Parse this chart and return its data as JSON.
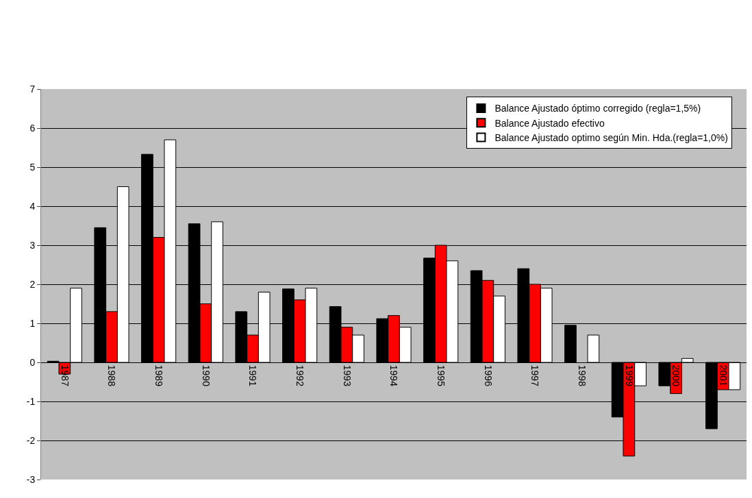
{
  "chart_data": {
    "type": "bar",
    "categories": [
      "1987",
      "1988",
      "1989",
      "1990",
      "1991",
      "1992",
      "1993",
      "1994",
      "1995",
      "1996",
      "1997",
      "1998",
      "1999",
      "2000",
      "2001"
    ],
    "series": [
      {
        "name": "Balance Ajustado óptimo corregido (regla=1,5%)",
        "color": "#000000",
        "values": [
          0.03,
          3.45,
          5.33,
          3.55,
          1.3,
          1.88,
          1.43,
          1.12,
          2.67,
          2.35,
          2.4,
          0.95,
          -1.4,
          -0.6,
          -1.7
        ]
      },
      {
        "name": "Balance Ajustado efectivo",
        "color": "#ff0000",
        "values": [
          -0.3,
          1.3,
          3.2,
          1.5,
          0.7,
          1.6,
          0.9,
          1.2,
          3.0,
          2.1,
          2.0,
          null,
          -2.4,
          -0.8,
          -0.7
        ]
      },
      {
        "name": "Balance Ajustado optimo según Min. Hda.(regla=1,0%)",
        "color": "#ffffff",
        "values": [
          1.9,
          4.5,
          5.7,
          3.6,
          1.8,
          1.9,
          0.7,
          0.9,
          2.6,
          1.7,
          1.9,
          0.7,
          -0.6,
          0.1,
          -0.7
        ]
      }
    ],
    "ylim": [
      -3,
      7
    ],
    "yticks": [
      -3,
      -2,
      -1,
      0,
      1,
      2,
      3,
      4,
      5,
      6,
      7
    ],
    "grid": "y",
    "legend": "top right"
  }
}
